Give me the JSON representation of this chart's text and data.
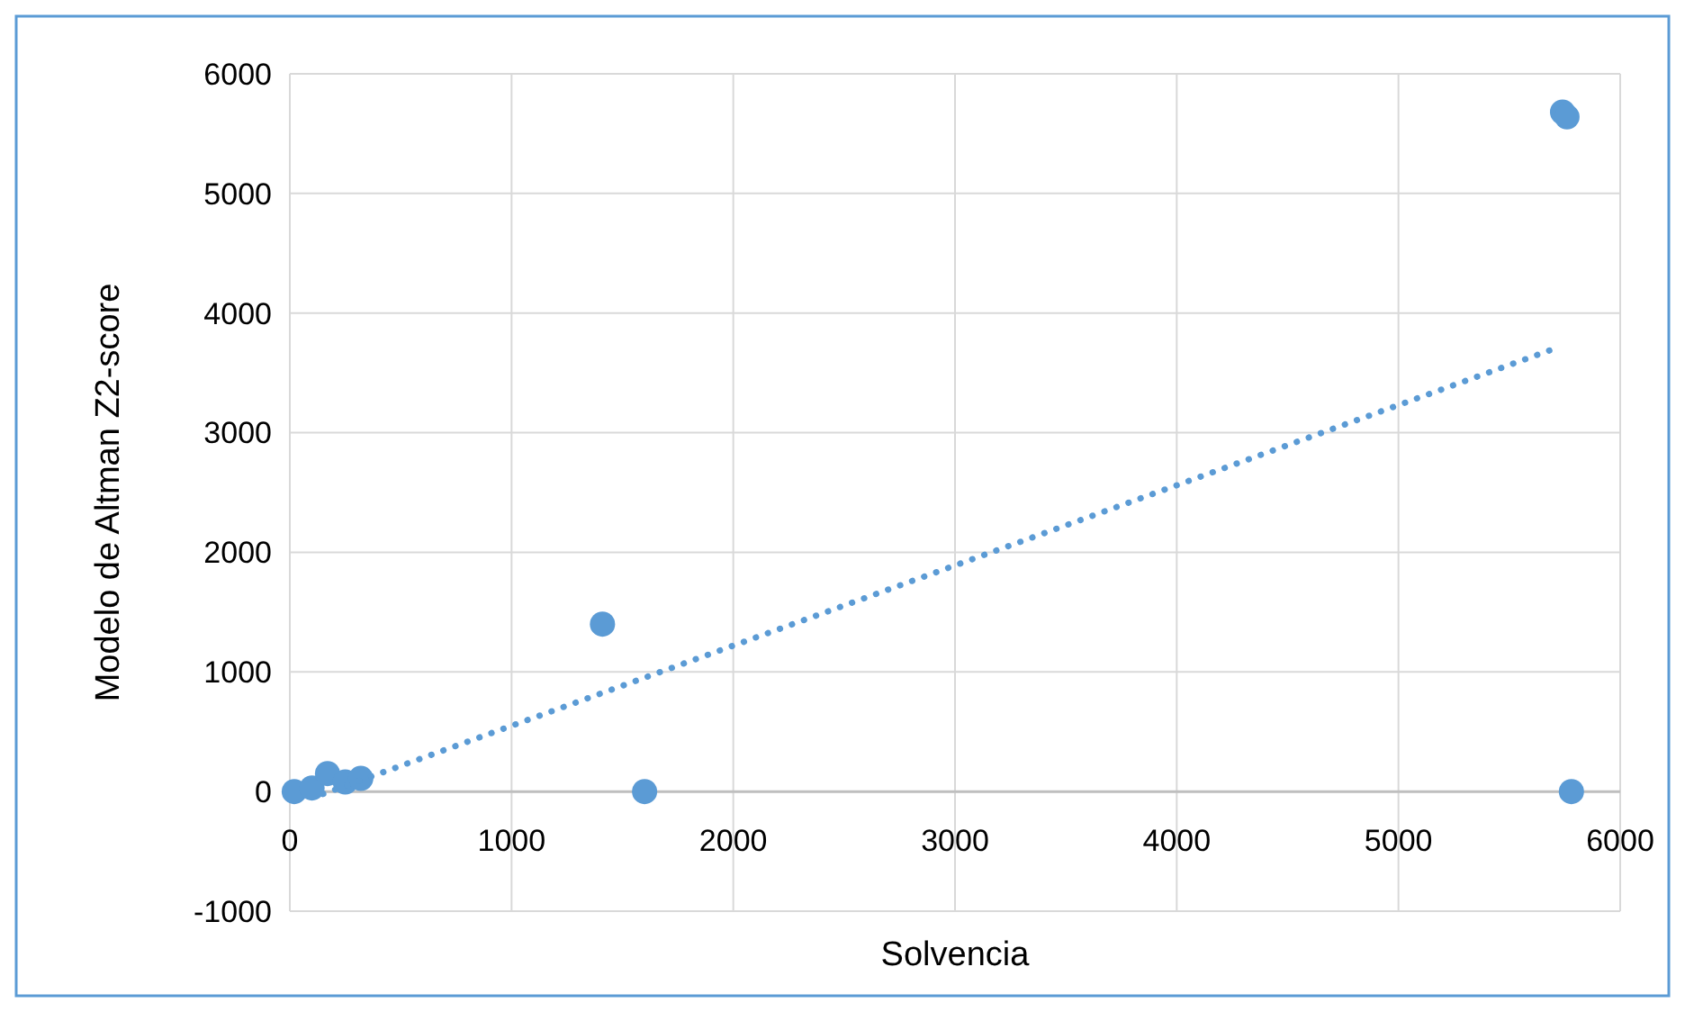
{
  "chart_data": {
    "type": "scatter",
    "xlabel": "Solvencia",
    "ylabel": "Modelo de Altman Z2-score",
    "xlim": [
      0,
      6000
    ],
    "ylim": [
      -1000,
      6000
    ],
    "xticks": [
      0,
      1000,
      2000,
      3000,
      4000,
      5000,
      6000
    ],
    "yticks": [
      -1000,
      0,
      1000,
      2000,
      3000,
      4000,
      5000,
      6000
    ],
    "grid": true,
    "series": [
      {
        "color": "#5b9bd5",
        "marker": "circle",
        "x": [
          20,
          100,
          170,
          250,
          320,
          1410,
          1600,
          5740,
          5760,
          5780
        ],
        "values": [
          0,
          30,
          150,
          80,
          110,
          1400,
          0,
          5680,
          5640,
          0
        ]
      },
      {
        "type": "line",
        "color": "#5b9bd5",
        "marker": "none",
        "line_style": "dotted",
        "x": [
          150,
          5730
        ],
        "values": [
          -20,
          3720
        ]
      }
    ]
  }
}
